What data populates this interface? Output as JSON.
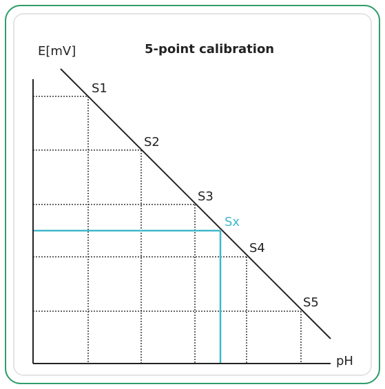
{
  "title": "5-point calibration",
  "y_axis_label": "E[mV]",
  "x_axis_label": "pH",
  "points": [
    {
      "label": "S1"
    },
    {
      "label": "S2"
    },
    {
      "label": "S3"
    },
    {
      "label": "S4"
    },
    {
      "label": "S5"
    }
  ],
  "sample": {
    "label": "Sx"
  }
}
